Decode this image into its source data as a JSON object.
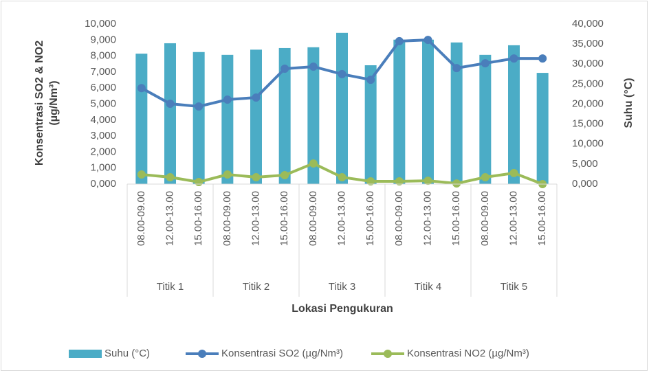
{
  "chart_data": {
    "type": "bar",
    "xlabel": "Lokasi Pengukuran",
    "ylabel_lines": [
      "Konsentrasi  SO2 & NO2",
      "(µg/Nm³)"
    ],
    "y2label": "Suhu (°C)",
    "categories": [
      "08.00-09.00",
      "12.00-13.00",
      "15.00-16.00",
      "08.00-09.00",
      "12.00-13.00",
      "15.00-16.00",
      "08.00-09.00",
      "12.00-13.00",
      "15.00-16.00",
      "08.00-09.00",
      "12.00-13.00",
      "15.00-16.00",
      "08.00-09.00",
      "12.00-13.00",
      "15.00-16.00"
    ],
    "groups": [
      "Titik  1",
      "Titik 2",
      "Titik 3",
      "Titik 4",
      "Titik 5"
    ],
    "ylim": [
      0,
      10
    ],
    "yticks": [
      {
        "value": 0,
        "label": "0,000"
      },
      {
        "value": 1,
        "label": "1,000"
      },
      {
        "value": 2,
        "label": "2,000"
      },
      {
        "value": 3,
        "label": "3,000"
      },
      {
        "value": 4,
        "label": "4,000"
      },
      {
        "value": 5,
        "label": "5,000"
      },
      {
        "value": 6,
        "label": "6,000"
      },
      {
        "value": 7,
        "label": "7,000"
      },
      {
        "value": 8,
        "label": "8,000"
      },
      {
        "value": 9,
        "label": "9,000"
      },
      {
        "value": 10,
        "label": "10,000"
      }
    ],
    "y2lim": [
      0,
      40
    ],
    "y2ticks": [
      {
        "value": 0,
        "label": "0,000"
      },
      {
        "value": 5,
        "label": "5,000"
      },
      {
        "value": 10,
        "label": "10,000"
      },
      {
        "value": 15,
        "label": "15,000"
      },
      {
        "value": 20,
        "label": "20,000"
      },
      {
        "value": 25,
        "label": "25,000"
      },
      {
        "value": 30,
        "label": "30,000"
      },
      {
        "value": 35,
        "label": "35,000"
      },
      {
        "value": 40,
        "label": "40,000"
      }
    ],
    "legend": "bottom",
    "series": [
      {
        "name": "Suhu (°C)",
        "type": "bar",
        "axis": "y2",
        "color": "#4bacc6",
        "values": [
          32.6,
          35.2,
          33.0,
          32.3,
          33.6,
          34.0,
          34.2,
          37.8,
          29.7,
          36.1,
          36.1,
          35.4,
          32.3,
          34.7,
          27.8
        ]
      },
      {
        "name": "Konsentrasi SO2 (µg/Nm³)",
        "type": "line",
        "color": "#4a7ebb",
        "values": [
          6.0,
          5.02,
          4.85,
          5.28,
          5.41,
          7.21,
          7.34,
          6.87,
          6.52,
          8.93,
          9.01,
          7.25,
          7.55,
          7.85,
          7.85
        ]
      },
      {
        "name": "Konsentrasi NO2 (µg/Nm³)",
        "type": "line",
        "color": "#9bbb59",
        "values": [
          0.6,
          0.43,
          0.13,
          0.6,
          0.43,
          0.56,
          1.29,
          0.43,
          0.17,
          0.17,
          0.21,
          0.04,
          0.43,
          0.69,
          0.0
        ]
      }
    ]
  }
}
